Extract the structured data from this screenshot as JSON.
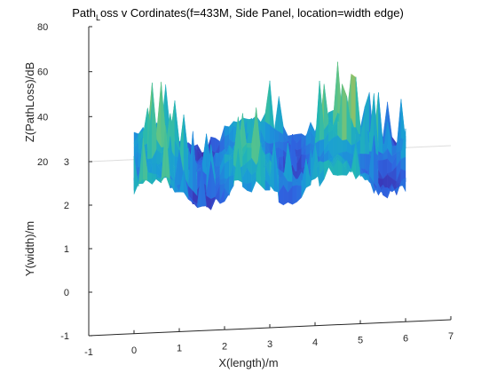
{
  "chart_data": {
    "type": "surface",
    "title_main": "Path",
    "title_sub": "L",
    "title_rest": "oss v Cordinates(f=433M, Side Panel, location=width edge)",
    "xlabel": "X(length)/m",
    "ylabel": "Y(width)/m",
    "zlabel": "Z(PathLoss)/dB",
    "x_ticks": [
      "-1",
      "0",
      "1",
      "2",
      "3",
      "4",
      "5",
      "6",
      "7"
    ],
    "y_ticks": [
      "-1",
      "0",
      "1",
      "2",
      "3"
    ],
    "z_ticks": [
      "20",
      "40",
      "60",
      "80"
    ],
    "xlim": [
      -1,
      7
    ],
    "ylim": [
      -1,
      3
    ],
    "zlim": [
      20,
      80
    ],
    "surface_x_range": [
      0,
      6
    ],
    "surface_y_range": [
      1.4,
      2.8
    ],
    "typical_z": 35,
    "peak_z": 60,
    "colormap": [
      "#3e26a8",
      "#2f64e0",
      "#1a9ad8",
      "#23b7b3",
      "#5dc488",
      "#b6bd4f",
      "#f6d32c"
    ],
    "grid": false
  }
}
